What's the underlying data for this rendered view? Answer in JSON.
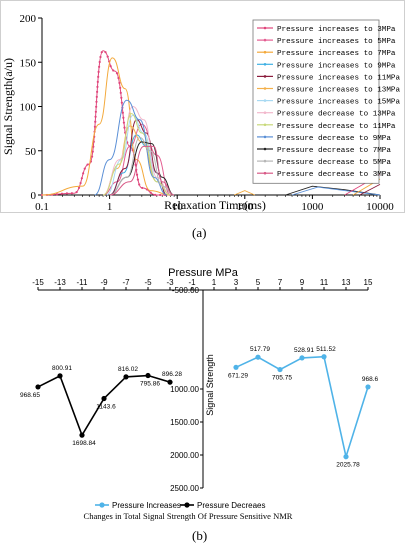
{
  "panel_labels": [
    "(a)",
    "(b)"
  ],
  "chart_data": [
    {
      "type": "line",
      "xlabel": "Relaxation Time(ms)",
      "ylabel": "Signal Strength(a/u)",
      "xscale": "log",
      "xlim": [
        0.1,
        10000
      ],
      "ylim": [
        0,
        200
      ],
      "xticks": [
        "0.1",
        "1",
        "10",
        "100",
        "1000",
        "10000"
      ],
      "yticks": [
        "0",
        "50",
        "100",
        "150",
        "200"
      ],
      "grid": false,
      "legend_position": "top-right",
      "series": [
        {
          "name": "Pressure increases to 3MPa",
          "color": "#e0457b",
          "marker": "plus",
          "points": [
            [
              0.1,
              0
            ],
            [
              0.3,
              2
            ],
            [
              0.5,
              35
            ],
            [
              0.8,
              163
            ],
            [
              1.2,
              140
            ],
            [
              2,
              55
            ],
            [
              3,
              8
            ],
            [
              5,
              0
            ],
            [
              8,
              0
            ]
          ]
        },
        {
          "name": "Pressure increases to 5MPa",
          "color": "#e45e92",
          "marker": "none",
          "points": [
            [
              0.8,
              0
            ],
            [
              1.3,
              15
            ],
            [
              2,
              55
            ],
            [
              3,
              80
            ],
            [
              5,
              45
            ],
            [
              8,
              0
            ]
          ]
        },
        {
          "name": "Pressure increases to 7MPa",
          "color": "#f3a93b",
          "marker": "none",
          "points": [
            [
              0.1,
              0
            ],
            [
              0.4,
              10
            ],
            [
              0.7,
              80
            ],
            [
              1.1,
              155
            ],
            [
              1.7,
              120
            ],
            [
              2.5,
              40
            ],
            [
              4,
              5
            ],
            [
              8,
              0
            ]
          ]
        },
        {
          "name": "Pressure increases to 9MPa",
          "color": "#3fb0e3",
          "marker": "none",
          "points": [
            [
              1,
              0
            ],
            [
              1.6,
              25
            ],
            [
              2.5,
              68
            ],
            [
              3.5,
              55
            ],
            [
              5,
              25
            ],
            [
              7,
              0
            ]
          ]
        },
        {
          "name": "Pressure increases to 11MPa",
          "color": "#8b1c3d",
          "marker": "none",
          "points": [
            [
              1,
              0
            ],
            [
              1.7,
              30
            ],
            [
              2.5,
              85
            ],
            [
              3.5,
              70
            ],
            [
              5,
              25
            ],
            [
              7,
              0
            ]
          ]
        },
        {
          "name": "Pressure increases to 13MPa",
          "color": "#f4b04a",
          "marker": "none",
          "points": [
            [
              0.8,
              0
            ],
            [
              1.3,
              30
            ],
            [
              2,
              78
            ],
            [
              3,
              60
            ],
            [
              5,
              15
            ],
            [
              8,
              0
            ]
          ]
        },
        {
          "name": "Pressure increases to 15MPa",
          "color": "#a8d9f2",
          "marker": "none",
          "points": [
            [
              0.9,
              0
            ],
            [
              1.5,
              40
            ],
            [
              2.2,
              90
            ],
            [
              3.2,
              70
            ],
            [
              5,
              15
            ],
            [
              8,
              0
            ]
          ]
        },
        {
          "name": "Pressure decrease to 13MPa",
          "color": "#f2b8cc",
          "marker": "none",
          "points": [
            [
              0.8,
              0
            ],
            [
              1.4,
              40
            ],
            [
              2.2,
              100
            ],
            [
              3.2,
              85
            ],
            [
              5,
              20
            ],
            [
              8,
              0
            ]
          ]
        },
        {
          "name": "Pressure decrease to 11MPa",
          "color": "#c8d97a",
          "marker": "none",
          "points": [
            [
              0.8,
              0
            ],
            [
              1.4,
              35
            ],
            [
              2.1,
              92
            ],
            [
              3,
              70
            ],
            [
              5,
              15
            ],
            [
              8,
              0
            ]
          ]
        },
        {
          "name": "Pressure decrease to 9MPa",
          "color": "#5a8fd6",
          "marker": "none",
          "points": [
            [
              0.6,
              0
            ],
            [
              1,
              40
            ],
            [
              1.8,
              107
            ],
            [
              2.8,
              85
            ],
            [
              4.5,
              20
            ],
            [
              7,
              0
            ]
          ]
        },
        {
          "name": "Pressure decrease to 7MPa",
          "color": "#222222",
          "marker": "none",
          "points": [
            [
              1,
              0
            ],
            [
              1.8,
              20
            ],
            [
              3,
              60
            ],
            [
              4.2,
              58
            ],
            [
              6,
              20
            ],
            [
              9,
              0
            ]
          ]
        },
        {
          "name": "Pressure decrease to 5MPa",
          "color": "#b6b6b6",
          "marker": "none",
          "points": [
            [
              1,
              0
            ],
            [
              1.8,
              20
            ],
            [
              2.8,
              65
            ],
            [
              4,
              50
            ],
            [
              6,
              10
            ],
            [
              9,
              0
            ]
          ]
        },
        {
          "name": "Pressure decrease to 3MPa",
          "color": "#d85a87",
          "marker": "none",
          "points": [
            [
              1,
              0
            ],
            [
              2,
              15
            ],
            [
              3.2,
              55
            ],
            [
              4.5,
              55
            ],
            [
              6,
              15
            ],
            [
              9,
              0
            ]
          ]
        }
      ]
    },
    {
      "type": "line",
      "title": "Changes in Total Signal Strength Of Pressure Sensitive NMR",
      "xlabel": "Pressure  MPa",
      "ylabel": "Signal  Strength",
      "xlim": [
        -15,
        15
      ],
      "ylim": [
        -500,
        2500
      ],
      "yaxis_inverted": true,
      "xticks": [
        "-15",
        "-13",
        "-11",
        "-9",
        "-7",
        "-5",
        "-3",
        "-1",
        "1",
        "3",
        "5",
        "7",
        "9",
        "11",
        "13",
        "15"
      ],
      "yticks": [
        "-500.00",
        "1000.00",
        "1500.00",
        "2000.00",
        "2500.00"
      ],
      "legend_position": "bottom",
      "series": [
        {
          "name": "Pressure Increases",
          "color": "#4fb3e8",
          "x": [
            3,
            5,
            7,
            9,
            11,
            13,
            15
          ],
          "y": [
            671.29,
            517.79,
            705.75,
            528.91,
            511.52,
            2025.78,
            968.6
          ],
          "labels": [
            "671.29",
            "517.79",
            "705.75",
            "528.91",
            "511.52",
            "2025.78",
            "968.6"
          ]
        },
        {
          "name": "Pressure Decreaes",
          "color": "#000000",
          "x": [
            -15,
            -13,
            -11,
            -9,
            -7,
            -5,
            -3
          ],
          "y": [
            968.65,
            800.91,
            1698.84,
            1143.6,
            816.02,
            795.86,
            896.28
          ],
          "labels": [
            "968.65",
            "800.91",
            "1698.84",
            "1143.6",
            "816.02",
            "795.86",
            "896.28"
          ]
        }
      ]
    }
  ]
}
